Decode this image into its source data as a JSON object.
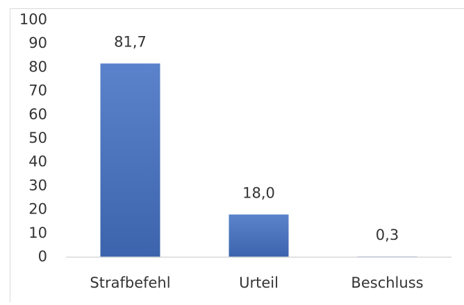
{
  "chart_data": {
    "type": "bar",
    "categories": [
      "Strafbefehl",
      "Urteil",
      "Beschluss"
    ],
    "values": [
      81.7,
      18.0,
      0.3
    ],
    "value_labels": [
      "81,7",
      "18,0",
      "0,3"
    ],
    "color": "#4472c4",
    "ylim": [
      0,
      100
    ],
    "yticks": [
      0,
      10,
      20,
      30,
      40,
      50,
      60,
      70,
      80,
      90,
      100
    ],
    "grid": false
  }
}
